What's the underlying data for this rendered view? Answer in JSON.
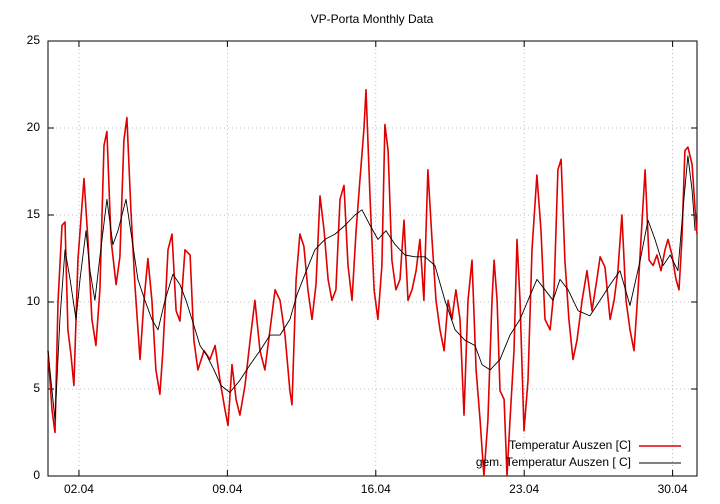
{
  "chart_data": {
    "type": "line",
    "title": "VP-Porta Monthly Data",
    "xlim": [
      0.54,
      31.15
    ],
    "xticks": [
      {
        "value": 2,
        "label": "02.04"
      },
      {
        "value": 9,
        "label": "09.04"
      },
      {
        "value": 16,
        "label": "16.04"
      },
      {
        "value": 23,
        "label": "23.04"
      },
      {
        "value": 30,
        "label": "30.04"
      }
    ],
    "ylim": [
      0,
      25
    ],
    "yticks": [
      0,
      5,
      10,
      15,
      20,
      25
    ],
    "grid": true,
    "legend": "bottom-right",
    "series": [
      {
        "name": "Temperatur Auszen [C]",
        "color": "#e00000",
        "x": [
          0.54,
          0.73,
          0.87,
          1.01,
          1.2,
          1.34,
          1.48,
          1.62,
          1.76,
          1.95,
          2.24,
          2.42,
          2.61,
          2.8,
          2.99,
          3.18,
          3.32,
          3.51,
          3.75,
          3.93,
          4.12,
          4.26,
          4.45,
          4.64,
          4.88,
          5.07,
          5.25,
          5.44,
          5.63,
          5.82,
          5.96,
          6.2,
          6.39,
          6.58,
          6.76,
          7.0,
          7.24,
          7.42,
          7.61,
          7.9,
          8.18,
          8.42,
          8.65,
          8.89,
          9.03,
          9.22,
          9.41,
          9.59,
          9.83,
          10.07,
          10.3,
          10.54,
          10.77,
          11.01,
          11.25,
          11.48,
          11.72,
          11.95,
          12.05,
          12.24,
          12.42,
          12.61,
          12.8,
          12.99,
          13.18,
          13.37,
          13.56,
          13.75,
          13.93,
          14.12,
          14.31,
          14.5,
          14.69,
          14.88,
          15.07,
          15.25,
          15.44,
          15.54,
          15.73,
          15.92,
          16.1,
          16.29,
          16.43,
          16.58,
          16.76,
          16.95,
          17.14,
          17.33,
          17.52,
          17.71,
          17.9,
          18.08,
          18.27,
          18.46,
          18.65,
          18.84,
          19.03,
          19.22,
          19.41,
          19.59,
          19.78,
          19.97,
          20.16,
          20.35,
          20.54,
          20.73,
          20.92,
          21.1,
          21.29,
          21.48,
          21.58,
          21.72,
          21.86,
          22.05,
          22.19,
          22.33,
          22.52,
          22.66,
          22.8,
          22.99,
          23.18,
          23.37,
          23.6,
          23.79,
          23.98,
          24.22,
          24.41,
          24.59,
          24.74,
          24.92,
          25.11,
          25.3,
          25.49,
          25.73,
          25.96,
          26.2,
          26.43,
          26.58,
          26.81,
          27.05,
          27.24,
          27.42,
          27.61,
          27.8,
          27.99,
          28.18,
          28.37,
          28.56,
          28.7,
          28.89,
          29.08,
          29.26,
          29.45,
          29.64,
          29.78,
          29.97,
          30.16,
          30.3,
          30.44,
          30.58,
          30.72,
          30.92,
          31.06,
          31.15
        ],
        "values": [
          7.2,
          3.8,
          2.5,
          10,
          14.4,
          14.6,
          8.4,
          7,
          5.2,
          12.4,
          17.1,
          13.6,
          9,
          7.5,
          10.7,
          19,
          19.8,
          13.6,
          11,
          12.6,
          19.3,
          20.6,
          15.3,
          11,
          6.7,
          10.1,
          12.5,
          10.1,
          6.1,
          4.7,
          7.2,
          13,
          13.9,
          9.5,
          8.9,
          13,
          12.7,
          7.8,
          6.1,
          7.2,
          6.7,
          7.5,
          5.5,
          3.8,
          2.9,
          6.4,
          4.4,
          3.5,
          5.2,
          7.8,
          10.1,
          7.2,
          6.1,
          8.4,
          10.7,
          10.1,
          8.1,
          4.9,
          4.1,
          11.3,
          13.9,
          13.2,
          10.7,
          9,
          11,
          16.1,
          14.1,
          11.3,
          10.1,
          10.7,
          15.9,
          16.7,
          12.1,
          10.1,
          14.1,
          17,
          19.9,
          22.2,
          15.9,
          10.7,
          9,
          12.1,
          20.2,
          18.7,
          12.4,
          10.7,
          11.3,
          14.7,
          10.1,
          10.7,
          11.8,
          13.6,
          10.1,
          17.6,
          13.6,
          10.1,
          8.4,
          7.2,
          10.1,
          9,
          10.7,
          9,
          3.5,
          10.1,
          12.4,
          6.1,
          3.2,
          0,
          3.2,
          10.1,
          12.4,
          10.1,
          4.9,
          4.4,
          0,
          3.2,
          7.2,
          13.6,
          10.1,
          2.6,
          5.5,
          13,
          17.3,
          14.1,
          9,
          8.4,
          10.7,
          17.6,
          18.2,
          12.4,
          9,
          6.7,
          7.8,
          10.1,
          11.8,
          9.5,
          11.3,
          12.6,
          12,
          9,
          10.1,
          11.8,
          15,
          10.1,
          8.4,
          7.2,
          10.7,
          14.7,
          17.6,
          12.4,
          12.1,
          12.7,
          11.8,
          13,
          13.6,
          12.7,
          11.3,
          10.7,
          13.6,
          18.7,
          18.9,
          17.9,
          15.3,
          13.9
        ]
      },
      {
        "name": "gem. Temperatur Auszen [ C]",
        "color": "#000000",
        "x": [
          0.54,
          0.87,
          1.1,
          1.34,
          1.58,
          1.86,
          2.05,
          2.33,
          2.52,
          2.75,
          2.99,
          3.32,
          3.6,
          3.84,
          4.22,
          4.5,
          4.78,
          5.11,
          5.44,
          5.73,
          6.06,
          6.43,
          6.76,
          7.05,
          7.33,
          7.71,
          8.04,
          8.37,
          8.7,
          9.12,
          9.59,
          10.07,
          10.54,
          11.01,
          11.48,
          11.95,
          12.28,
          12.66,
          13.13,
          13.6,
          14.08,
          14.55,
          15.02,
          15.35,
          15.73,
          16.1,
          16.48,
          16.91,
          17.38,
          17.85,
          18.32,
          18.79,
          19.26,
          19.74,
          20.21,
          20.68,
          21.01,
          21.39,
          21.86,
          22.33,
          22.8,
          23.18,
          23.6,
          23.98,
          24.36,
          24.69,
          25.07,
          25.54,
          26.1,
          26.58,
          27.05,
          27.52,
          27.99,
          28.47,
          28.84,
          29.17,
          29.55,
          29.88,
          30.25,
          30.53,
          30.72,
          30.92,
          31.06
        ],
        "values": [
          7.2,
          3.2,
          9,
          13,
          11.3,
          9,
          11.3,
          14.1,
          11.8,
          10.1,
          12.6,
          15.9,
          13.3,
          14.1,
          15.9,
          13.6,
          11.3,
          10.1,
          9,
          8.4,
          10.1,
          11.6,
          11,
          10.1,
          9,
          7.5,
          6.9,
          6.1,
          5.2,
          4.8,
          5.5,
          6.4,
          7.2,
          8.1,
          8.1,
          9,
          10.4,
          11.6,
          13,
          13.6,
          13.9,
          14.4,
          15,
          15.3,
          14.4,
          13.6,
          14.1,
          13.3,
          12.7,
          12.6,
          12.6,
          12.1,
          10.1,
          8.4,
          7.8,
          7.5,
          6.4,
          6.1,
          6.7,
          8.1,
          9,
          10.1,
          11.3,
          10.7,
          10.1,
          11.3,
          10.7,
          9.5,
          9.2,
          10.1,
          11,
          11.8,
          9.8,
          12.4,
          14.7,
          13.6,
          12.1,
          12.7,
          11.8,
          15.9,
          18.4,
          16.4,
          14.1
        ]
      }
    ]
  }
}
